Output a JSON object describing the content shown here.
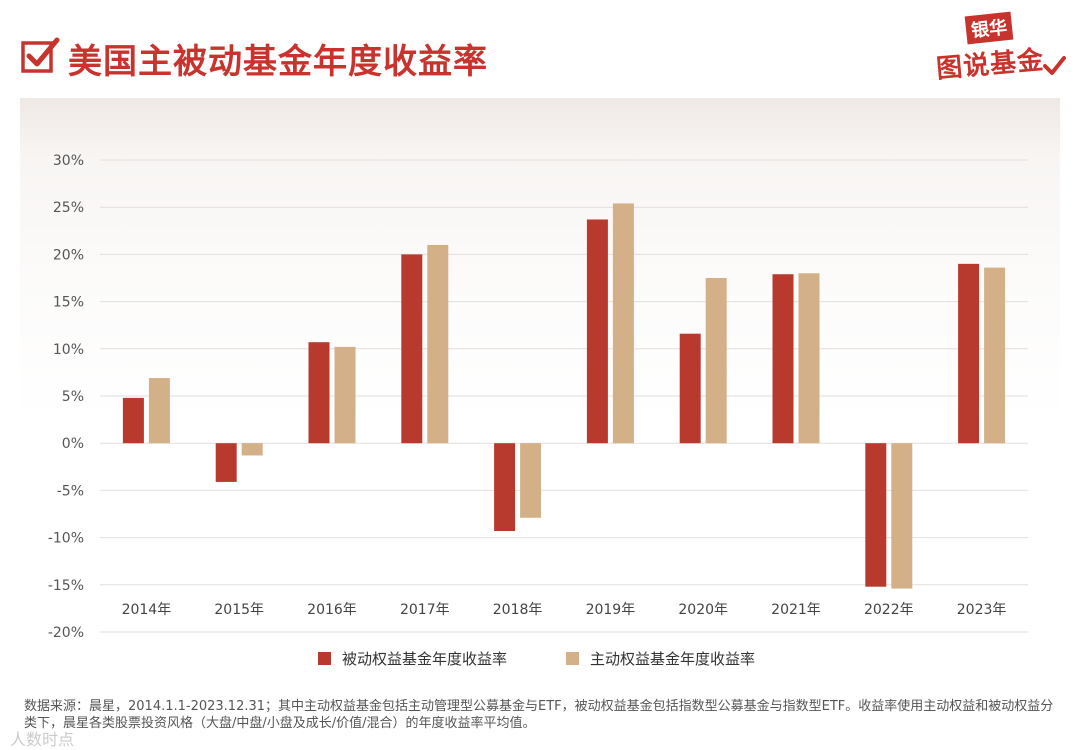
{
  "header": {
    "title": "美国主被动基金年度收益率",
    "logo_top": "银华",
    "logo_bottom": "图说基金"
  },
  "colors": {
    "accent": "#c8332d",
    "passive": "#b83a2f",
    "active": "#d4b088"
  },
  "icons": [
    "check-icon",
    "logo-check-icon"
  ],
  "chart_data": {
    "type": "bar",
    "categories": [
      "2014年",
      "2015年",
      "2016年",
      "2017年",
      "2018年",
      "2019年",
      "2020年",
      "2021年",
      "2022年",
      "2023年"
    ],
    "series": [
      {
        "name": "被动权益基金年度收益率",
        "color": "#b83a2f",
        "values": [
          4.8,
          -4.1,
          10.7,
          20.0,
          -9.3,
          23.7,
          11.6,
          17.9,
          -15.2,
          19.0
        ]
      },
      {
        "name": "主动权益基金年度收益率",
        "color": "#d4b088",
        "values": [
          6.9,
          -1.3,
          10.2,
          21.0,
          -7.9,
          25.4,
          17.5,
          18.0,
          -15.4,
          18.6
        ]
      }
    ],
    "yticks": [
      "30%",
      "25%",
      "20%",
      "15%",
      "10%",
      "5%",
      "0%",
      "-5%",
      "-10%",
      "-15%",
      "-20%"
    ],
    "ylim": [
      -20,
      30
    ],
    "grid": true,
    "legend_position": "bottom-center"
  },
  "footnote": "数据来源：晨星，2014.1.1-2023.12.31；其中主动权益基金包括主动管理型公募基金与ETF，被动权益基金包括指数型公募基金与指数型ETF。收益率使用主动权益和被动权益分类下，晨星各类股票投资风格（大盘/中盘/小盘及成长/价值/混合）的年度收益率平均值。",
  "watermark": "人数时点"
}
